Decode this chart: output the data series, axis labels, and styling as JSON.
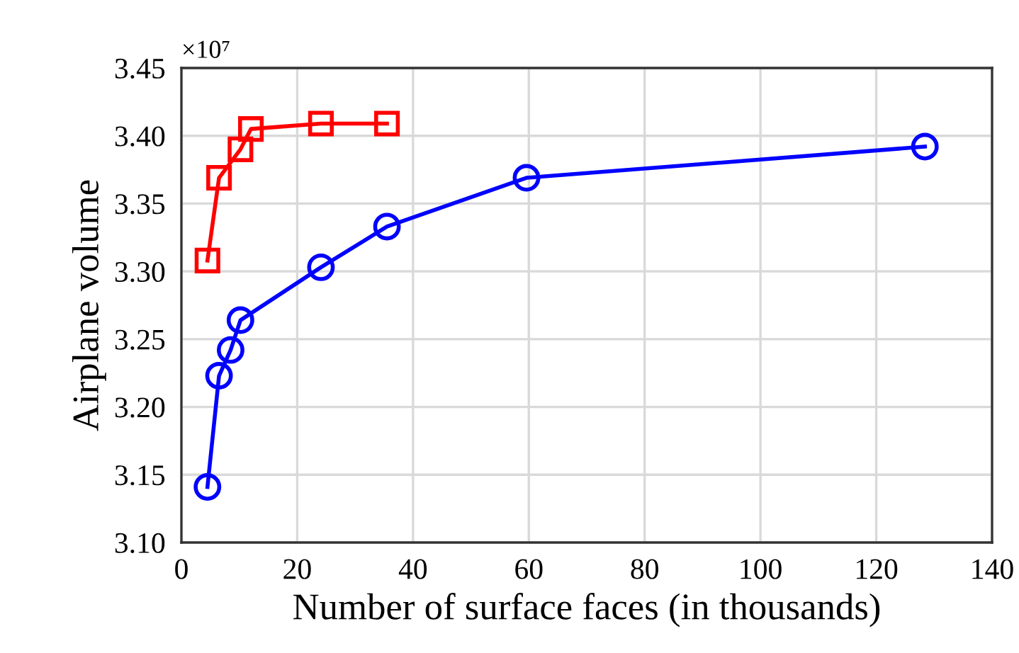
{
  "chart_data": {
    "type": "line",
    "xlabel": "Number of surface faces (in thousands)",
    "ylabel": "Airplane volume",
    "annotations": [
      "×10⁷"
    ],
    "series": [
      {
        "color": "#ff0000",
        "marker": "square",
        "x": [
          4.5,
          6.5,
          10.2,
          12.0,
          24.1,
          35.5
        ],
        "values": [
          3.308,
          3.369,
          3.39,
          3.405,
          3.409,
          3.409
        ]
      },
      {
        "color": "#0000ff",
        "marker": "circle",
        "x": [
          4.5,
          6.5,
          8.5,
          10.2,
          24.1,
          35.5,
          59.6,
          128.4
        ],
        "values": [
          3.141,
          3.223,
          3.242,
          3.264,
          3.303,
          3.333,
          3.369,
          3.392
        ]
      }
    ],
    "xlim": [
      0,
      140
    ],
    "xticks": [
      0,
      20,
      40,
      60,
      80,
      100,
      120,
      140
    ],
    "ylim": [
      3.1,
      3.45
    ],
    "yticks": [
      {
        "value": 3.1,
        "label": "3.10"
      },
      {
        "value": 3.15,
        "label": "3.15"
      },
      {
        "value": 3.2,
        "label": "3.20"
      },
      {
        "value": 3.25,
        "label": "3.25"
      },
      {
        "value": 3.3,
        "label": "3.30"
      },
      {
        "value": 3.35,
        "label": "3.35"
      },
      {
        "value": 3.4,
        "label": "3.40"
      },
      {
        "value": 3.45,
        "label": "3.45"
      }
    ],
    "grid": true,
    "line_style": "solid"
  }
}
